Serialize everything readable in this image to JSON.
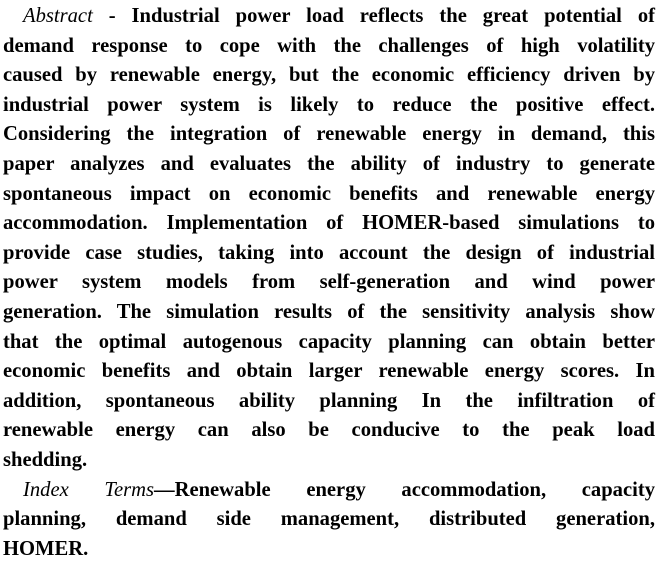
{
  "abstract": {
    "heading": "Abstract",
    "lines": [
      " - Industrial power load reflects the great potential of",
      "demand response to cope with the challenges of high volatility",
      "caused by renewable energy, but the economic efficiency driven by",
      "industrial power system is likely to reduce the positive effect.",
      "Considering the integration of renewable energy in demand, this",
      "paper analyzes and evaluates the ability of industry to generate",
      "spontaneous impact on economic benefits and renewable energy",
      "accommodation. Implementation of HOMER-based simulations to",
      "provide case studies, taking into account the design of industrial",
      "power system models from self-generation and wind power",
      "generation. The simulation results of the sensitivity analysis show",
      "that the optimal autogenous capacity planning can obtain better",
      "economic benefits and obtain larger renewable energy scores. In",
      "addition, spontaneous ability planning In the infiltration of",
      "renewable energy can also be conducive to the peak load",
      "shedding."
    ]
  },
  "index_terms": {
    "heading": "Index Terms",
    "lines": [
      "—Renewable energy accommodation, capacity",
      "planning, demand side management, distributed generation,",
      "HOMER."
    ]
  }
}
